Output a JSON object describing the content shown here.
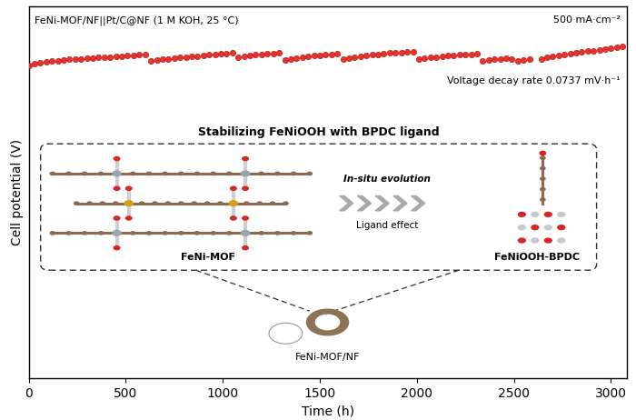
{
  "chart_data": {
    "type": "scatter",
    "x_label": "Time (h)",
    "y_label": "Cell potential (V)",
    "x": [
      0,
      30,
      60,
      90,
      120,
      150,
      180,
      210,
      240,
      270,
      300,
      330,
      360,
      390,
      420,
      450,
      480,
      510,
      540,
      570,
      600,
      630,
      660,
      690,
      720,
      750,
      780,
      810,
      840,
      870,
      900,
      930,
      960,
      990,
      1020,
      1050,
      1080,
      1110,
      1140,
      1170,
      1200,
      1230,
      1260,
      1290,
      1320,
      1350,
      1380,
      1410,
      1440,
      1470,
      1500,
      1530,
      1560,
      1590,
      1620,
      1650,
      1680,
      1710,
      1740,
      1770,
      1800,
      1830,
      1860,
      1890,
      1920,
      1950,
      1980,
      2010,
      2040,
      2070,
      2100,
      2130,
      2160,
      2190,
      2220,
      2250,
      2280,
      2310,
      2340,
      2370,
      2400,
      2430,
      2460,
      2490,
      2520,
      2550,
      2580,
      2640,
      2670,
      2700,
      2730,
      2760,
      2790,
      2820,
      2850,
      2880,
      2910,
      2940,
      2970,
      3000,
      3030,
      3060
    ],
    "values": [
      1.842,
      1.846,
      1.849,
      1.851,
      1.853,
      1.854,
      1.856,
      1.857,
      1.858,
      1.859,
      1.86,
      1.861,
      1.862,
      1.863,
      1.864,
      1.865,
      1.866,
      1.867,
      1.868,
      1.869,
      1.87,
      1.852,
      1.855,
      1.857,
      1.859,
      1.86,
      1.862,
      1.863,
      1.865,
      1.866,
      1.868,
      1.869,
      1.87,
      1.872,
      1.873,
      1.874,
      1.862,
      1.865,
      1.867,
      1.869,
      1.87,
      1.872,
      1.873,
      1.875,
      1.855,
      1.858,
      1.861,
      1.863,
      1.865,
      1.867,
      1.868,
      1.87,
      1.871,
      1.872,
      1.858,
      1.861,
      1.864,
      1.866,
      1.868,
      1.869,
      1.871,
      1.872,
      1.874,
      1.875,
      1.876,
      1.877,
      1.878,
      1.858,
      1.861,
      1.863,
      1.864,
      1.866,
      1.867,
      1.868,
      1.869,
      1.87,
      1.871,
      1.872,
      1.852,
      1.855,
      1.857,
      1.859,
      1.86,
      1.857,
      1.854,
      1.856,
      1.858,
      1.858,
      1.862,
      1.865,
      1.868,
      1.871,
      1.873,
      1.875,
      1.877,
      1.879,
      1.881,
      1.883,
      1.885,
      1.887,
      1.889,
      1.891
    ],
    "color": "#e8322b",
    "marker": "o",
    "xlim": [
      0,
      3080
    ],
    "xticks": [
      0,
      500,
      1000,
      1500,
      2000,
      2500,
      3000
    ],
    "ylim": [
      1.0,
      2.0
    ],
    "tick_labels": "x",
    "annotations": [
      "FeNi-MOF/NF||Pt/C@NF (1 M KOH, 25 °C)",
      "500 mA·cm⁻²",
      "Voltage decay rate 0.0737 mV·h⁻¹",
      "Stabilizing FeNiOOH with BPDC ligand",
      "In-situ evolution",
      "Ligand effect",
      "FeNi-MOF",
      "FeNiOOH-BPDC",
      "FeNi-MOF/NF"
    ]
  }
}
